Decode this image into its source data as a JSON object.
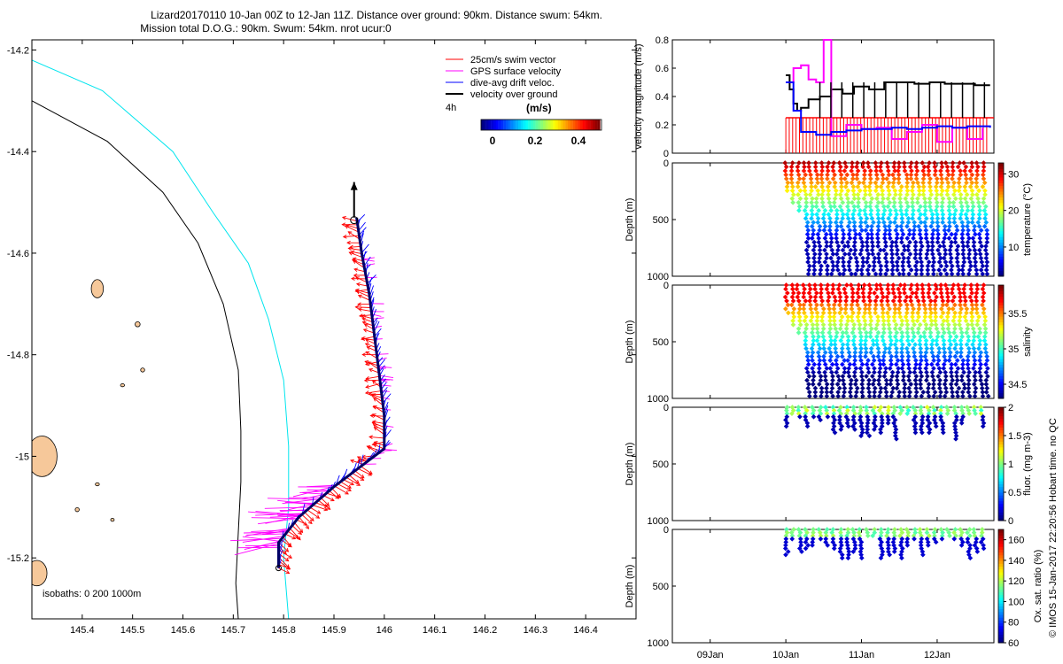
{
  "title": {
    "line1": "Lizard20170110 10-Jan 00Z to 12-Jan 11Z. Distance over ground: 90km. Distance swum: 54km.",
    "line2": "Mission total D.O.G.: 90km. Swum: 54km. nrot ucur:0"
  },
  "footer": "© IMOS 15-Jan-2017 22:20:56 Hobart time. no QC",
  "chart_data": [
    {
      "type": "scatter",
      "name": "glider-track-map",
      "xlim": [
        145.3,
        146.5
      ],
      "ylim": [
        -15.32,
        -14.18
      ],
      "xticks": [
        "145.4",
        "145.5",
        "145.6",
        "145.7",
        "145.8",
        "145.9",
        "146",
        "146.1",
        "146.2",
        "146.3",
        "146.4"
      ],
      "yticks": [
        "-14.2",
        "-14.4",
        "-14.6",
        "-14.8",
        "-15",
        "-15.2"
      ],
      "legend": {
        "items": [
          {
            "label": "25cm/s swim vector",
            "color": "#ff0000"
          },
          {
            "label": "GPS surface velocity",
            "color": "#ff00ff"
          },
          {
            "label": "dive-avg drift veloc.",
            "color": "#0000ff"
          },
          {
            "label": "velocity over ground",
            "color": "#000000"
          }
        ],
        "interval": "4h",
        "colorbar_unit": "(m/s)",
        "colorbar_ticks": [
          "0",
          "0.2",
          "0.4"
        ]
      },
      "isobaths_label": "isobaths: 0   200  1000m",
      "track": [
        [
          145.79,
          -15.22
        ],
        [
          145.79,
          -15.17
        ],
        [
          145.83,
          -15.12
        ],
        [
          145.9,
          -15.06
        ],
        [
          146.0,
          -14.985
        ],
        [
          146.0,
          -14.92
        ],
        [
          145.99,
          -14.84
        ],
        [
          145.98,
          -14.76
        ],
        [
          145.97,
          -14.68
        ],
        [
          145.955,
          -14.6
        ],
        [
          145.945,
          -14.53
        ]
      ],
      "vog_arrow": [
        [
          145.94,
          -14.53
        ],
        [
          145.94,
          -14.46
        ]
      ],
      "isobath_200": [
        [
          145.3,
          -14.3
        ],
        [
          145.45,
          -14.38
        ],
        [
          145.56,
          -14.48
        ],
        [
          145.63,
          -14.58
        ],
        [
          145.68,
          -14.7
        ],
        [
          145.71,
          -14.83
        ],
        [
          145.715,
          -14.95
        ],
        [
          145.715,
          -15.05
        ],
        [
          145.71,
          -15.15
        ],
        [
          145.705,
          -15.25
        ],
        [
          145.71,
          -15.32
        ]
      ],
      "isobath_1000": [
        [
          145.3,
          -14.22
        ],
        [
          145.44,
          -14.28
        ],
        [
          145.58,
          -14.4
        ],
        [
          145.66,
          -14.52
        ],
        [
          145.73,
          -14.62
        ],
        [
          145.77,
          -14.73
        ],
        [
          145.8,
          -14.85
        ],
        [
          145.81,
          -14.98
        ],
        [
          145.81,
          -15.1
        ],
        [
          145.8,
          -15.2
        ],
        [
          145.81,
          -15.32
        ]
      ],
      "islands": [
        {
          "lon": 145.43,
          "lat": -14.67,
          "rx": 0.012,
          "ry": 0.018
        },
        {
          "lon": 145.51,
          "lat": -14.74,
          "rx": 0.005,
          "ry": 0.005
        },
        {
          "lon": 145.52,
          "lat": -14.83,
          "rx": 0.004,
          "ry": 0.004
        },
        {
          "lon": 145.48,
          "lat": -14.86,
          "rx": 0.004,
          "ry": 0.003
        },
        {
          "lon": 145.32,
          "lat": -15.0,
          "rx": 0.03,
          "ry": 0.04
        },
        {
          "lon": 145.43,
          "lat": -15.055,
          "rx": 0.004,
          "ry": 0.003
        },
        {
          "lon": 145.39,
          "lat": -15.105,
          "rx": 0.004,
          "ry": 0.004
        },
        {
          "lon": 145.46,
          "lat": -15.125,
          "rx": 0.003,
          "ry": 0.003
        },
        {
          "lon": 145.31,
          "lat": -15.23,
          "rx": 0.02,
          "ry": 0.025
        }
      ]
    },
    {
      "type": "line",
      "name": "velocity-magnitude-panel",
      "ylabel": "velocity magnitude (m/s)",
      "ylim": [
        0,
        0.8
      ],
      "yticks": [
        "0",
        "0.2",
        "0.4",
        "0.6",
        "0.8"
      ],
      "xlim_days": [
        8.5,
        12.75
      ],
      "series": [
        {
          "name": "velocity over ground",
          "color": "#000000",
          "x": [
            10.0,
            10.05,
            10.1,
            10.15,
            10.2,
            10.3,
            10.45,
            10.6,
            10.75,
            10.9,
            11.1,
            11.3,
            11.5,
            11.7,
            11.9,
            12.1,
            12.3,
            12.5,
            12.7
          ],
          "y": [
            0.55,
            0.45,
            0.35,
            0.3,
            0.32,
            0.38,
            0.4,
            0.45,
            0.42,
            0.47,
            0.45,
            0.5,
            0.5,
            0.49,
            0.5,
            0.49,
            0.49,
            0.48,
            0.48
          ]
        },
        {
          "name": "GPS surface velocity",
          "color": "#ff00ff",
          "x": [
            10.0,
            10.1,
            10.2,
            10.3,
            10.4,
            10.5,
            10.6,
            10.8,
            11.0,
            11.2,
            11.4,
            11.6,
            11.8,
            12.0,
            12.2,
            12.4,
            12.6
          ],
          "y": [
            0.5,
            0.6,
            0.62,
            0.52,
            0.5,
            0.8,
            0.12,
            0.2,
            0.17,
            0.18,
            0.1,
            0.15,
            0.2,
            0.08,
            0.18,
            0.1,
            0.18
          ]
        },
        {
          "name": "dive-avg drift veloc.",
          "color": "#0000ff",
          "x": [
            10.0,
            10.1,
            10.2,
            10.4,
            10.6,
            10.8,
            11.0,
            11.2,
            11.4,
            11.6,
            11.8,
            12.0,
            12.2,
            12.4,
            12.7
          ],
          "y": [
            0.5,
            0.3,
            0.15,
            0.13,
            0.15,
            0.16,
            0.17,
            0.17,
            0.18,
            0.17,
            0.18,
            0.19,
            0.18,
            0.19,
            0.18
          ]
        },
        {
          "name": "swim",
          "color": "#ff0000",
          "x": [
            10.0,
            10.1,
            10.2,
            10.4,
            10.7,
            11.0,
            11.3,
            11.6,
            11.9,
            12.2,
            12.5,
            12.7
          ],
          "y": [
            0.25,
            0.25,
            0.25,
            0.25,
            0.25,
            0.25,
            0.25,
            0.25,
            0.25,
            0.25,
            0.25,
            0.25
          ]
        }
      ]
    },
    {
      "type": "scatter",
      "name": "temperature-section",
      "ylabel": "Depth (m)",
      "ylim": [
        1000,
        0
      ],
      "yticks": [
        "0",
        "500",
        "1000"
      ],
      "colorbar": {
        "label": "temperature (°C)",
        "min": 2,
        "max": 33,
        "ticks": [
          "10",
          "20",
          "30"
        ]
      },
      "profiles_start_day": 10.05,
      "max_depth": 1000
    },
    {
      "type": "scatter",
      "name": "salinity-section",
      "ylabel": "Depth (m)",
      "ylim": [
        1000,
        0
      ],
      "yticks": [
        "0",
        "500",
        "1000"
      ],
      "colorbar": {
        "label": "salinity",
        "min": 34.3,
        "max": 35.9,
        "ticks": [
          "34.5",
          "35",
          "35.5"
        ]
      },
      "profiles_start_day": 10.05,
      "max_depth": 1000
    },
    {
      "type": "scatter",
      "name": "fluorescence-section",
      "ylabel": "Depth (m)",
      "ylim": [
        1000,
        0
      ],
      "yticks": [
        "0",
        "500",
        "1000"
      ],
      "colorbar": {
        "label": "fluor. (mg m-3)",
        "min": 0,
        "max": 2,
        "ticks": [
          "0",
          "0.5",
          "1",
          "1.5",
          "2"
        ]
      },
      "max_depth": 250
    },
    {
      "type": "scatter",
      "name": "oxygen-section",
      "ylabel": "Depth (m)",
      "ylim": [
        1000,
        0
      ],
      "yticks": [
        "0",
        "500",
        "1000"
      ],
      "colorbar": {
        "label": "Ox. sat. ratio (%)",
        "min": 60,
        "max": 170,
        "ticks": [
          "60",
          "80",
          "100",
          "120",
          "140",
          "160"
        ]
      },
      "max_depth": 250
    }
  ],
  "time_axis": {
    "ticks": [
      "09Jan",
      "10Jan",
      "11Jan",
      "12Jan"
    ],
    "days": [
      9,
      10,
      11,
      12
    ]
  }
}
